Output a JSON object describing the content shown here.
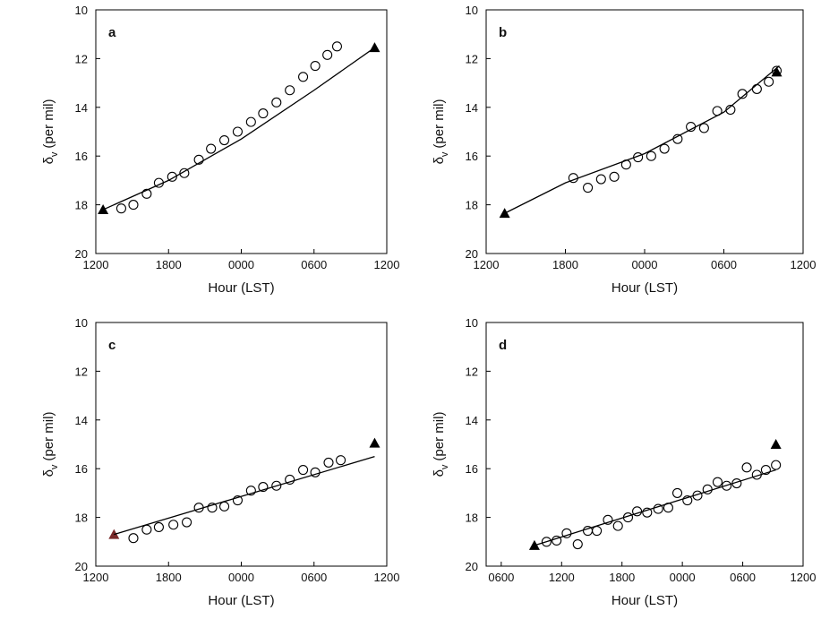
{
  "chart_data": [
    {
      "type": "scatter",
      "title": "a",
      "xlabel": "Hour (LST)",
      "ylabel": {
        "symbol": "δ",
        "subscript": "v",
        "text": "(per mil)"
      },
      "xlim": [
        12,
        36
      ],
      "xticks": [
        {
          "value": 12,
          "label": "1200"
        },
        {
          "value": 18,
          "label": "1800"
        },
        {
          "value": 24,
          "label": "0000"
        },
        {
          "value": 30,
          "label": "0600"
        },
        {
          "value": 36,
          "label": "1200"
        }
      ],
      "ylim": [
        10,
        20
      ],
      "yticks": [
        10,
        12,
        14,
        16,
        18,
        20
      ],
      "y_inverted": true,
      "series": [
        {
          "marker": "circle",
          "color": "#000000",
          "x": [
            14.1,
            15.1,
            16.2,
            17.2,
            18.3,
            19.3,
            20.5,
            21.5,
            22.6,
            23.7,
            24.8,
            25.8,
            26.9,
            28.0,
            29.1,
            30.1,
            31.1,
            31.9
          ],
          "values": [
            18.15,
            18.0,
            17.55,
            17.1,
            16.85,
            16.7,
            16.15,
            15.7,
            15.35,
            15.0,
            14.6,
            14.25,
            13.8,
            13.3,
            12.75,
            12.3,
            11.85,
            11.5
          ]
        },
        {
          "marker": "triangle",
          "color": "#000000",
          "x": [
            12.6,
            35.0
          ],
          "values": [
            18.2,
            11.55
          ]
        },
        {
          "marker": "line",
          "color": "#000000",
          "x": [
            12.6,
            18,
            24,
            30,
            35.0
          ],
          "values": [
            18.2,
            17.0,
            15.3,
            13.3,
            11.55
          ]
        }
      ]
    },
    {
      "type": "scatter",
      "title": "b",
      "xlabel": "Hour (LST)",
      "ylabel": {
        "symbol": "δ",
        "subscript": "v",
        "text": "(per mil)"
      },
      "xlim": [
        12,
        36
      ],
      "xticks": [
        {
          "value": 12,
          "label": "1200"
        },
        {
          "value": 18,
          "label": "1800"
        },
        {
          "value": 24,
          "label": "0000"
        },
        {
          "value": 30,
          "label": "0600"
        },
        {
          "value": 36,
          "label": "1200"
        }
      ],
      "ylim": [
        10,
        20
      ],
      "yticks": [
        10,
        12,
        14,
        16,
        18,
        20
      ],
      "y_inverted": true,
      "series": [
        {
          "marker": "circle",
          "color": "#000000",
          "x": [
            18.6,
            19.7,
            20.7,
            21.7,
            22.6,
            23.5,
            24.5,
            25.5,
            26.5,
            27.5,
            28.5,
            29.5,
            30.5,
            31.4,
            32.5,
            33.4,
            34.0
          ],
          "values": [
            16.9,
            17.3,
            16.95,
            16.85,
            16.35,
            16.05,
            16.0,
            15.7,
            15.3,
            14.8,
            14.85,
            14.15,
            14.1,
            13.45,
            13.25,
            12.95,
            12.5
          ]
        },
        {
          "marker": "triangle",
          "color": "#000000",
          "x": [
            13.4,
            34.0
          ],
          "values": [
            18.35,
            12.55
          ]
        },
        {
          "marker": "line",
          "color": "#000000",
          "x": [
            13.4,
            18,
            24,
            30,
            34.2
          ],
          "values": [
            18.35,
            17.1,
            15.9,
            14.2,
            12.3
          ]
        }
      ]
    },
    {
      "type": "scatter",
      "title": "c",
      "xlabel": "Hour (LST)",
      "ylabel": {
        "symbol": "δ",
        "subscript": "v",
        "text": "(per mil)"
      },
      "xlim": [
        12,
        36
      ],
      "xticks": [
        {
          "value": 12,
          "label": "1200"
        },
        {
          "value": 18,
          "label": "1800"
        },
        {
          "value": 24,
          "label": "0000"
        },
        {
          "value": 30,
          "label": "0600"
        },
        {
          "value": 36,
          "label": "1200"
        }
      ],
      "ylim": [
        10,
        20
      ],
      "yticks": [
        10,
        12,
        14,
        16,
        18,
        20
      ],
      "y_inverted": true,
      "series": [
        {
          "marker": "circle",
          "color": "#000000",
          "x": [
            15.1,
            16.2,
            17.2,
            18.4,
            19.5,
            20.5,
            21.6,
            22.6,
            23.7,
            24.8,
            25.8,
            26.9,
            28.0,
            29.1,
            30.1,
            31.2,
            32.2
          ],
          "values": [
            18.85,
            18.5,
            18.4,
            18.3,
            18.2,
            17.6,
            17.6,
            17.55,
            17.3,
            16.9,
            16.75,
            16.7,
            16.45,
            16.05,
            16.15,
            15.75,
            15.65
          ]
        },
        {
          "marker": "triangle",
          "color": "#000000",
          "colors": [
            "#7a2a2a",
            "#000000"
          ],
          "x": [
            13.5,
            35.0
          ],
          "values": [
            18.7,
            14.95
          ]
        },
        {
          "marker": "line",
          "color": "#000000",
          "x": [
            13.5,
            35.0
          ],
          "values": [
            18.7,
            15.5
          ]
        }
      ]
    },
    {
      "type": "scatter",
      "title": "d",
      "xlabel": "Hour (LST)",
      "ylabel": {
        "symbol": "δ",
        "subscript": "v",
        "text": "(per mil)"
      },
      "xlim": [
        4.5,
        36
      ],
      "xticks": [
        {
          "value": 6,
          "label": "0600"
        },
        {
          "value": 12,
          "label": "1200"
        },
        {
          "value": 18,
          "label": "1800"
        },
        {
          "value": 24,
          "label": "0000"
        },
        {
          "value": 30,
          "label": "0600"
        },
        {
          "value": 36,
          "label": "1200"
        }
      ],
      "ylim": [
        10,
        20
      ],
      "yticks": [
        10,
        12,
        14,
        16,
        18,
        20
      ],
      "y_inverted": true,
      "series": [
        {
          "marker": "circle",
          "color": "#000000",
          "x": [
            10.5,
            11.5,
            12.5,
            13.6,
            14.6,
            15.5,
            16.6,
            17.6,
            18.6,
            19.5,
            20.5,
            21.6,
            22.6,
            23.5,
            24.5,
            25.5,
            26.5,
            27.5,
            28.4,
            29.4,
            30.4,
            31.4,
            32.3,
            33.3
          ],
          "values": [
            19.0,
            18.95,
            18.65,
            19.1,
            18.55,
            18.55,
            18.1,
            18.35,
            18.0,
            17.75,
            17.8,
            17.65,
            17.6,
            17.0,
            17.3,
            17.1,
            16.85,
            16.55,
            16.7,
            16.6,
            15.95,
            16.25,
            16.05,
            15.85
          ]
        },
        {
          "marker": "triangle",
          "color": "#000000",
          "x": [
            9.3,
            33.3
          ],
          "values": [
            19.15,
            15.0
          ]
        },
        {
          "marker": "line",
          "color": "#000000",
          "x": [
            9.3,
            33.3
          ],
          "values": [
            19.15,
            16.05
          ]
        }
      ]
    }
  ]
}
